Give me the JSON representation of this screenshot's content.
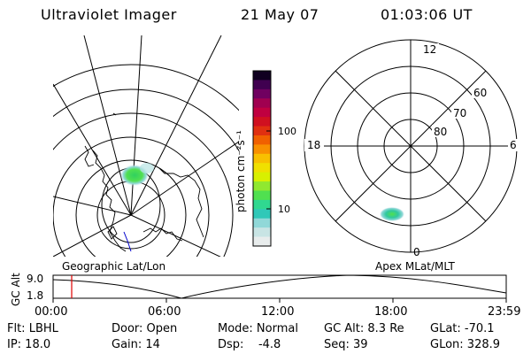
{
  "header": {
    "instrument": "Ultraviolet Imager",
    "date": "21 May 07",
    "time": "01:03:06 UT"
  },
  "left_map": {
    "label": "Geographic Lat/Lon"
  },
  "colorbar": {
    "unit_label": "photon cm⁻²s⁻¹",
    "tick_100": "100",
    "tick_10": "10",
    "colors": [
      "#e8ecec",
      "#c8e4e4",
      "#90d8d8",
      "#30c8b8",
      "#30d890",
      "#50e050",
      "#90e830",
      "#d8f000",
      "#f0e000",
      "#f8c000",
      "#f89000",
      "#f06000",
      "#e03010",
      "#d01020",
      "#c00040",
      "#a00050",
      "#700060",
      "#400050",
      "#100020"
    ]
  },
  "right_polar": {
    "label": "Apex MLat/MLT",
    "mlt_labels": {
      "top": "12",
      "left": "18",
      "right": "6",
      "bottom": "0"
    },
    "mlat_labels": [
      "60",
      "70",
      "80"
    ]
  },
  "altitude_plot": {
    "y_title": "GC Alt",
    "y_max": "9.0",
    "y_min": "1.8",
    "x_ticks": [
      "00:00",
      "06:00",
      "12:00",
      "18:00",
      "23:59"
    ],
    "marker_color": "#e00000"
  },
  "info": {
    "row1": {
      "filter": "Flt: LBHL",
      "door": "Door: Open",
      "mode": "Mode: Normal",
      "gc_alt": "GC Alt: 8.3 Re",
      "glat": "GLat: -70.1"
    },
    "row2": {
      "ip": "IP: 18.0",
      "gain": "Gain: 14",
      "dsp": "Dsp:    -4.8",
      "seq": "Seq: 39",
      "glon": "GLon: 328.9"
    }
  }
}
